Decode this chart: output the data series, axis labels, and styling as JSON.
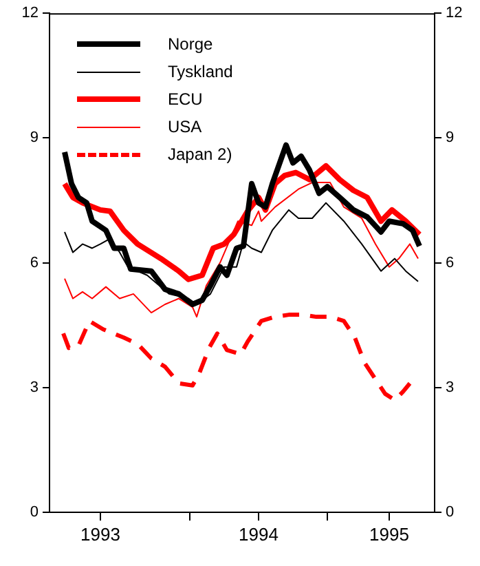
{
  "chart_data": {
    "type": "line",
    "xlim": [
      1992.98,
      1995.78
    ],
    "xticks": [
      {
        "value": 1993.35,
        "label": "1993"
      },
      {
        "value": 1994,
        "label": null
      },
      {
        "value": 1994.5,
        "label": "1994"
      },
      {
        "value": 1995,
        "label": null
      },
      {
        "value": 1995.45,
        "label": "1995"
      }
    ],
    "ylim": [
      0,
      12
    ],
    "yticks": [
      0,
      3,
      6,
      9,
      12
    ],
    "y2lim": [
      0,
      12
    ],
    "y2ticks": [
      0,
      3,
      6,
      9,
      12
    ],
    "grid": false,
    "legend": "top left",
    "marker": "none",
    "series": [
      {
        "name": "Norge",
        "color": "#000000",
        "line_style": "solid",
        "x": [
          1993.09,
          1993.14,
          1993.19,
          1993.25,
          1993.29,
          1993.39,
          1993.45,
          1993.52,
          1993.57,
          1993.72,
          1993.82,
          1993.92,
          1994.02,
          1994.09,
          1994.15,
          1994.22,
          1994.27,
          1994.34,
          1994.39,
          1994.45,
          1994.5,
          1994.55,
          1994.6,
          1994.7,
          1994.75,
          1994.81,
          1994.87,
          1994.94,
          1995.0,
          1995.09,
          1995.19,
          1995.29,
          1995.39,
          1995.45,
          1995.55,
          1995.62,
          1995.67
        ],
        "values": [
          8.66,
          7.9,
          7.57,
          7.44,
          7.0,
          6.78,
          6.35,
          6.35,
          5.85,
          5.8,
          5.36,
          5.25,
          5.0,
          5.1,
          5.45,
          5.9,
          5.7,
          6.35,
          6.4,
          7.9,
          7.44,
          7.34,
          7.9,
          8.83,
          8.4,
          8.56,
          8.23,
          7.67,
          7.83,
          7.57,
          7.27,
          7.1,
          6.74,
          7.0,
          6.94,
          6.78,
          6.4
        ]
      },
      {
        "name": "Tyskland",
        "color": "#000000",
        "line_style": "solid",
        "x": [
          1993.09,
          1993.15,
          1993.22,
          1993.29,
          1993.35,
          1993.42,
          1993.49,
          1993.55,
          1993.69,
          1993.85,
          1993.99,
          1994.05,
          1994.15,
          1994.25,
          1994.34,
          1994.39,
          1994.45,
          1994.52,
          1994.6,
          1994.72,
          1994.79,
          1994.89,
          1994.99,
          1995.12,
          1995.25,
          1995.39,
          1995.49,
          1995.57,
          1995.66
        ],
        "values": [
          6.74,
          6.25,
          6.45,
          6.35,
          6.45,
          6.58,
          6.25,
          5.9,
          5.7,
          5.25,
          5.14,
          5.0,
          5.25,
          5.9,
          5.9,
          6.5,
          6.35,
          6.25,
          6.78,
          7.27,
          7.07,
          7.07,
          7.44,
          7.0,
          6.45,
          5.8,
          6.1,
          5.8,
          5.55
        ]
      },
      {
        "name": "ECU",
        "color": "#ff0000",
        "line_style": "solid",
        "x": [
          1993.09,
          1993.15,
          1993.22,
          1993.35,
          1993.42,
          1993.52,
          1993.62,
          1993.79,
          1993.92,
          1993.99,
          1994.09,
          1994.17,
          1994.25,
          1994.32,
          1994.42,
          1994.5,
          1994.55,
          1994.62,
          1994.69,
          1994.77,
          1994.87,
          1994.99,
          1995.09,
          1995.19,
          1995.29,
          1995.39,
          1995.47,
          1995.57,
          1995.67
        ],
        "values": [
          7.9,
          7.57,
          7.44,
          7.27,
          7.24,
          6.78,
          6.45,
          6.1,
          5.8,
          5.6,
          5.7,
          6.35,
          6.45,
          6.68,
          7.24,
          7.57,
          7.27,
          7.9,
          8.1,
          8.17,
          8.0,
          8.33,
          8.0,
          7.74,
          7.57,
          7.0,
          7.27,
          7.0,
          6.68
        ]
      },
      {
        "name": "USA",
        "color": "#ff0000",
        "line_style": "solid",
        "x": [
          1993.09,
          1993.15,
          1993.22,
          1993.29,
          1993.39,
          1993.49,
          1993.59,
          1993.72,
          1993.82,
          1993.92,
          1994.02,
          1994.05,
          1994.12,
          1994.22,
          1994.35,
          1994.45,
          1994.5,
          1994.52,
          1994.62,
          1994.79,
          1994.89,
          1995.02,
          1995.12,
          1995.25,
          1995.35,
          1995.45,
          1995.52,
          1995.6,
          1995.66
        ],
        "values": [
          5.62,
          5.14,
          5.3,
          5.14,
          5.42,
          5.14,
          5.25,
          4.8,
          5.0,
          5.14,
          4.93,
          4.7,
          5.45,
          6.0,
          7.0,
          6.9,
          7.24,
          7.0,
          7.34,
          7.77,
          7.93,
          7.93,
          7.34,
          7.07,
          6.45,
          5.9,
          6.1,
          6.45,
          6.1
        ]
      },
      {
        "name": "Japan 2)",
        "color": "#ff0000",
        "line_style": "dashed",
        "x": [
          1993.08,
          1993.12,
          1993.19,
          1993.27,
          1993.37,
          1993.52,
          1993.62,
          1993.72,
          1993.82,
          1993.92,
          1994.02,
          1994.07,
          1994.14,
          1994.2,
          1994.27,
          1994.37,
          1994.42,
          1994.52,
          1994.62,
          1994.72,
          1994.82,
          1994.92,
          1995.02,
          1995.12,
          1995.2,
          1995.27,
          1995.35,
          1995.42,
          1995.49,
          1995.55,
          1995.6
        ],
        "values": [
          4.3,
          3.95,
          4.0,
          4.6,
          4.4,
          4.2,
          4.05,
          3.7,
          3.5,
          3.1,
          3.05,
          3.35,
          3.95,
          4.3,
          3.9,
          3.8,
          4.1,
          4.6,
          4.7,
          4.75,
          4.75,
          4.7,
          4.7,
          4.6,
          4.2,
          3.6,
          3.2,
          2.85,
          2.7,
          2.9,
          3.1
        ]
      }
    ]
  }
}
